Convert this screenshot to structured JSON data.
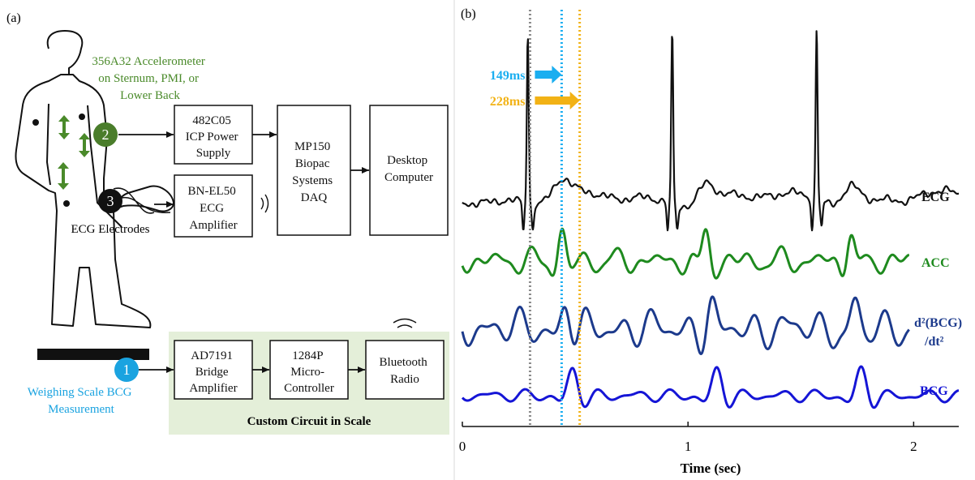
{
  "panel_a": {
    "label": "(a)",
    "accelerometer_label": [
      "356A32 Accelerometer",
      "on Sternum, PMI, or",
      "Lower Back"
    ],
    "electrodes_label": "ECG Electrodes",
    "scale_label": [
      "Weighing Scale BCG",
      "Measurement"
    ],
    "markers": [
      "1",
      "2",
      "3"
    ],
    "boxes": {
      "icp": [
        "482C05",
        "ICP Power",
        "Supply"
      ],
      "ecg_amp": [
        "BN-EL50",
        "ECG",
        "Amplifier"
      ],
      "daq": [
        "MP150",
        "Biopac",
        "Systems",
        "DAQ"
      ],
      "desktop": [
        "Desktop",
        "Computer"
      ],
      "bridge": [
        "AD7191",
        "Bridge",
        "Amplifier"
      ],
      "micro": [
        "1284P",
        "Micro-",
        "Controller"
      ],
      "bluetooth": [
        "Bluetooth",
        "Radio"
      ]
    },
    "custom_circuit_label": "Custom Circuit in Scale",
    "colors": {
      "accelerometer": "#4a8a2a",
      "scale": "#1aa3e0",
      "custom_bg": "#e4efd9",
      "marker_2": "#4a7d2b",
      "marker_3": "#111111",
      "marker_1": "#1aa3e0"
    }
  },
  "panel_b": {
    "label": "(b)",
    "chart_data": {
      "type": "line",
      "xlabel": "Time (sec)",
      "xlim": [
        0,
        2.2
      ],
      "xticks": [
        0,
        1,
        2
      ],
      "series": [
        {
          "name": "ECG",
          "color": "#111111",
          "x_end": 2.2,
          "r_peaks": [
            0.29,
            0.93,
            1.57
          ],
          "baseline_offset": 0
        },
        {
          "name": "ACC",
          "color": "#1e8a1e",
          "x_end": 1.98,
          "baseline_offset": 1
        },
        {
          "name": "d²(BCG)/dt²",
          "label_lines": [
            "d²(BCG)",
            "/dt²"
          ],
          "color": "#1c3a8c",
          "x_end": 1.98,
          "baseline_offset": 2
        },
        {
          "name": "BCG",
          "color": "#1515d6",
          "x_end": 2.2,
          "baseline_offset": 3
        }
      ],
      "markers": [
        {
          "x": 0.3,
          "color": "#8a8a8a",
          "style": "dotted"
        },
        {
          "x": 0.44,
          "color": "#1aaef0",
          "style": "dotted"
        },
        {
          "x": 0.52,
          "color": "#f2b215",
          "style": "dotted"
        }
      ],
      "annotations": [
        {
          "label": "149ms",
          "color": "#1aaef0",
          "from": 0.3,
          "to": 0.44
        },
        {
          "label": "228ms",
          "color": "#f2b215",
          "from": 0.3,
          "to": 0.52
        }
      ]
    }
  }
}
